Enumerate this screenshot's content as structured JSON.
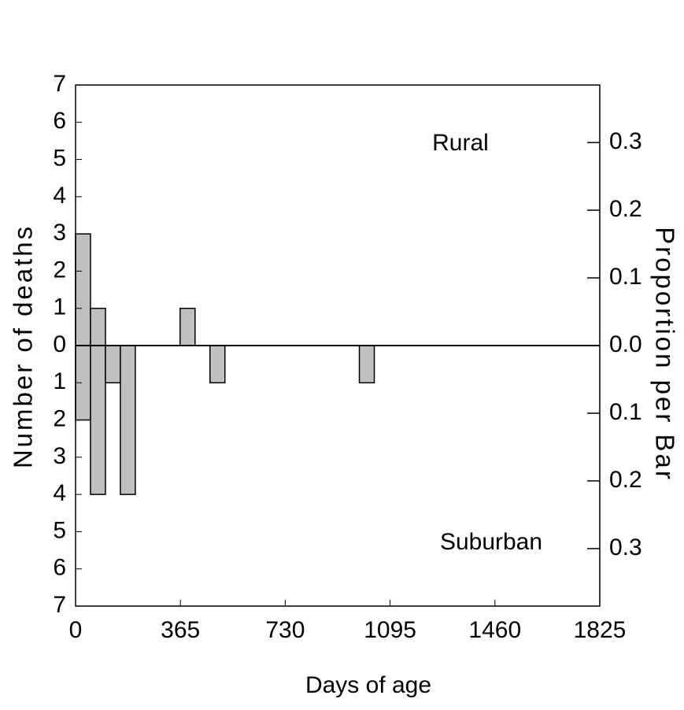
{
  "chart_data": {
    "type": "histogram",
    "xlabel": "Days of age",
    "ylabel": "Number of deaths",
    "y2label": "Proportion per Bar",
    "annotations": [
      "Rural",
      "Suburban"
    ],
    "bins": [
      0,
      52,
      104,
      156,
      208,
      260,
      312,
      364,
      416,
      468,
      520,
      572,
      624,
      676,
      728,
      780,
      832,
      884,
      936,
      988,
      1040,
      1092
    ],
    "series": [
      {
        "name": "Rural",
        "color": "#c0c0c0",
        "values": [
          3,
          1,
          0,
          0,
          0,
          0,
          0,
          1,
          0,
          0,
          0,
          0,
          0,
          0,
          0,
          0,
          0,
          0,
          0,
          0,
          0
        ]
      },
      {
        "name": "Suburban",
        "color": "#c0c0c0",
        "values": [
          -2,
          -4,
          -1,
          -4,
          0,
          0,
          0,
          0,
          0,
          -1,
          0,
          0,
          0,
          0,
          0,
          0,
          0,
          0,
          0,
          -1,
          0
        ]
      }
    ],
    "xlim": [
      0,
      1825
    ],
    "xticks": [
      0,
      365,
      730,
      1095,
      1460,
      1825
    ],
    "ylim": [
      -7,
      7
    ],
    "yticks": [
      {
        "value": -7,
        "label": "7"
      },
      {
        "value": -6,
        "label": "6"
      },
      {
        "value": -5,
        "label": "5"
      },
      {
        "value": -4,
        "label": "4"
      },
      {
        "value": -3,
        "label": "3"
      },
      {
        "value": -2,
        "label": "2"
      },
      {
        "value": -1,
        "label": "1"
      },
      0,
      1,
      2,
      3,
      4,
      5,
      6,
      7
    ],
    "y2lim": [
      -0.385,
      0.385
    ],
    "y2ticks": [
      {
        "value": -0.3,
        "label": "0.3"
      },
      {
        "value": -0.2,
        "label": "0.2"
      },
      {
        "value": -0.1,
        "label": "0.1"
      },
      {
        "value": 0,
        "label": "0.0"
      },
      0.1,
      0.2,
      0.3
    ]
  }
}
